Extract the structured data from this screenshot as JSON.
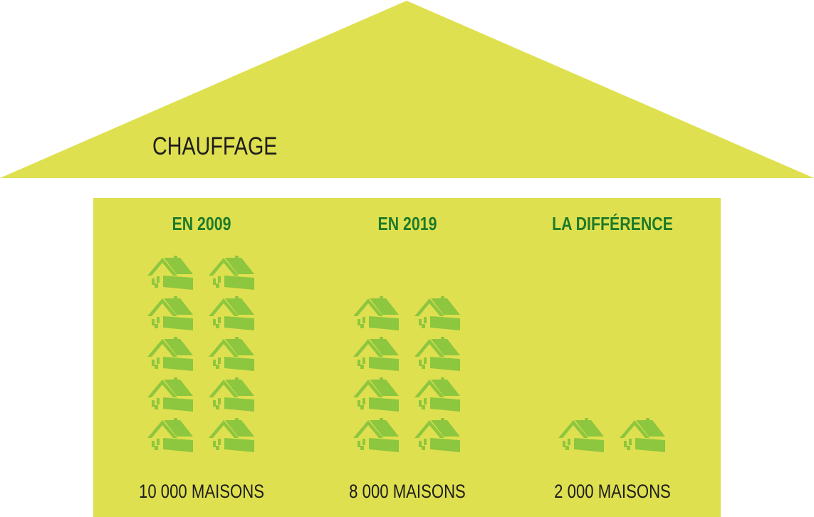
{
  "roof_title": "CHAUFFAGE",
  "colors": {
    "background": "#dfe04f",
    "house_icon": "#8dc63f",
    "title_text": "#1d7a2a",
    "caption_text": "#1d1d1b"
  },
  "icon_name": "house-icon",
  "columns": [
    {
      "title": "EN 2009",
      "caption": "10 000 MAISONS"
    },
    {
      "title": "EN 2019",
      "caption": "8 000 MAISONS"
    },
    {
      "title": "LA DIFFÉRENCE",
      "caption": "2 000 MAISONS"
    }
  ],
  "chart_data": {
    "type": "bar",
    "title": "CHAUFFAGE",
    "categories": [
      "EN 2009",
      "EN 2019",
      "LA DIFFÉRENCE"
    ],
    "values": [
      10000,
      8000,
      2000
    ],
    "unit": "MAISONS",
    "icon_unit_value": 1000
  }
}
